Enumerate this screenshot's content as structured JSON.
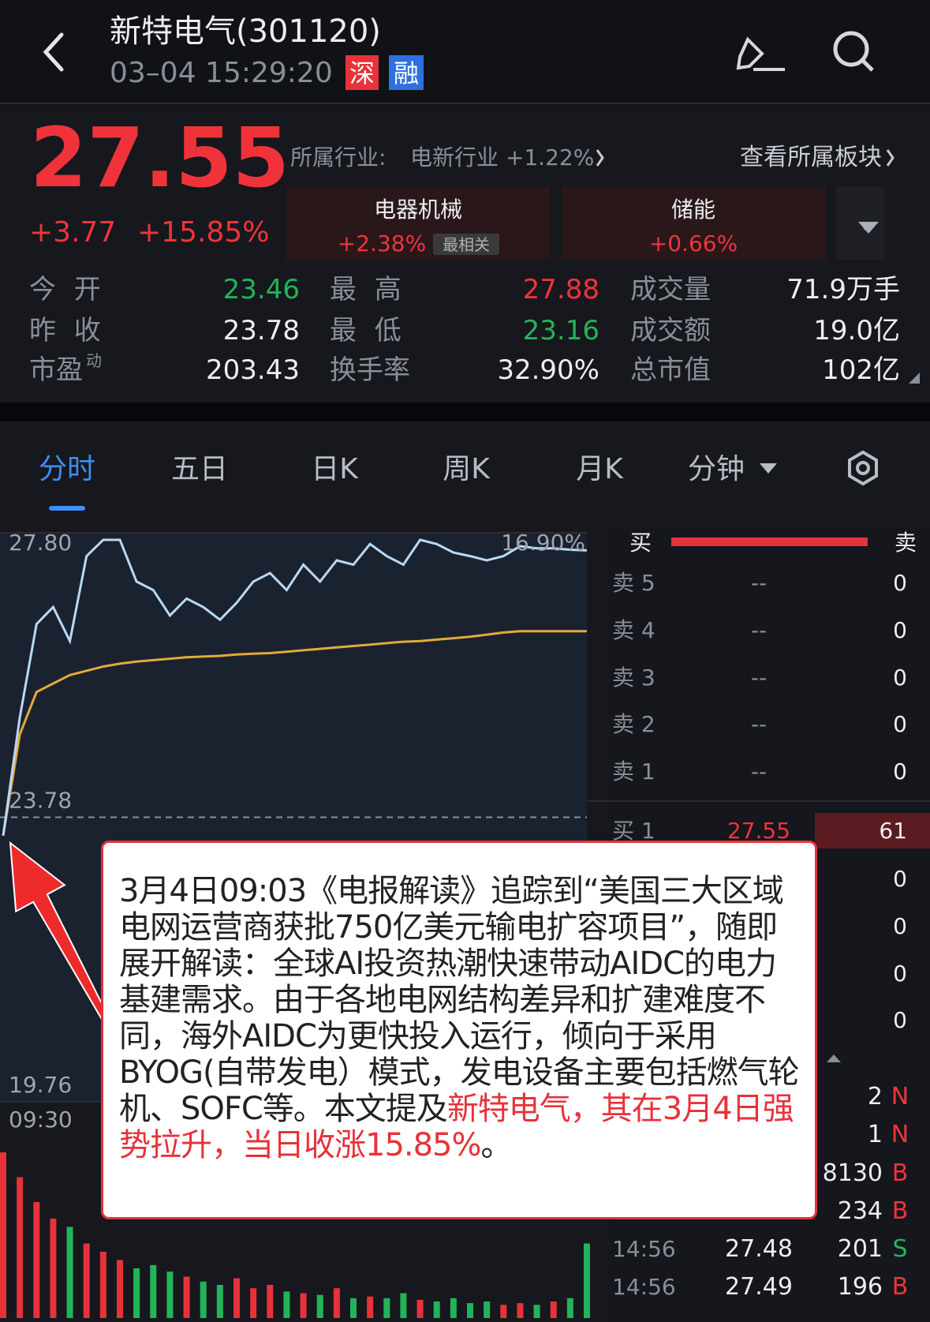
{
  "header": {
    "title": "新特电气(301120)",
    "datetime": "03–04 15:29:20",
    "badges": [
      "深",
      "融"
    ]
  },
  "quote": {
    "price": "27.55",
    "change": "+3.77",
    "change_pct": "+15.85%",
    "industry_label": "所属行业:",
    "industry": "电新行业 +1.22%",
    "sector_link": "查看所属板块",
    "sectors": [
      {
        "name": "电器机械",
        "change": "+2.38%",
        "tag": "最相关"
      },
      {
        "name": "储能",
        "change": "+0.66%"
      }
    ],
    "stats": [
      [
        {
          "label": "今 开",
          "value": "23.46",
          "color": "#22b45a"
        },
        {
          "label": "最 高",
          "value": "27.88",
          "color": "#f0333b"
        },
        {
          "label": "成交量",
          "value": "71.9万手"
        }
      ],
      [
        {
          "label": "昨 收",
          "value": "23.78"
        },
        {
          "label": "最 低",
          "value": "23.16",
          "color": "#22b45a"
        },
        {
          "label": "成交额",
          "value": "19.0亿"
        }
      ],
      [
        {
          "label": "市盈",
          "label_sup": "动",
          "value": "203.43"
        },
        {
          "label": "换手率",
          "value": "32.90%"
        },
        {
          "label": "总市值",
          "value": "102亿"
        }
      ]
    ]
  },
  "tabs": [
    "分时",
    "五日",
    "日K",
    "周K",
    "月K",
    "分钟"
  ],
  "intraday": {
    "yticks": [
      {
        "value": 27.8,
        "label": "27.80"
      },
      23.78,
      19.76
    ],
    "pct_label": "16.90%",
    "time_label": "09:30",
    "price": [
      23.52,
      25.19,
      26.51,
      26.75,
      26.27,
      27.47,
      27.7,
      27.7,
      27.11,
      26.99,
      26.63,
      26.87,
      26.75,
      26.57,
      26.81,
      27.11,
      27.23,
      26.99,
      27.35,
      27.11,
      27.41,
      27.35,
      27.64,
      27.47,
      27.35,
      27.7,
      27.64,
      27.52,
      27.47,
      27.41,
      27.47,
      27.61,
      27.58,
      27.58,
      27.56,
      27.55
    ],
    "avg": [
      23.52,
      24.95,
      25.55,
      25.67,
      25.79,
      25.85,
      25.91,
      25.95,
      25.98,
      26.0,
      26.02,
      26.04,
      26.05,
      26.06,
      26.08,
      26.09,
      26.1,
      26.12,
      26.14,
      26.16,
      26.18,
      26.2,
      26.22,
      26.24,
      26.26,
      26.27,
      26.29,
      26.31,
      26.33,
      26.36,
      26.39,
      26.41,
      26.41,
      26.41,
      26.41,
      26.41
    ],
    "volume": [
      100,
      85,
      70,
      60,
      55,
      45,
      40,
      35,
      30,
      32,
      28,
      25,
      22,
      20,
      24,
      18,
      20,
      16,
      15,
      14,
      18,
      12,
      13,
      12,
      15,
      11,
      10,
      12,
      9,
      10,
      8,
      9,
      8,
      10,
      12,
      45
    ]
  },
  "order_book": {
    "buy": "买",
    "sell": "卖",
    "asks": [
      {
        "label": "卖 5",
        "price": "--",
        "volume": "0"
      },
      {
        "label": "卖 4",
        "price": "--",
        "volume": "0"
      },
      {
        "label": "卖 3",
        "price": "--",
        "volume": "0"
      },
      {
        "label": "卖 2",
        "price": "--",
        "volume": "0"
      },
      {
        "label": "卖 1",
        "price": "--",
        "volume": "0"
      }
    ],
    "bids": [
      {
        "label": "买 1",
        "price": "27.55",
        "volume": "61"
      },
      {
        "volume": "0"
      },
      {
        "volume": "0"
      },
      {
        "volume": "0"
      },
      {
        "volume": "0"
      }
    ],
    "trades": [
      {
        "volume": "2",
        "dir": "N"
      },
      {
        "volume": "1",
        "dir": "N"
      },
      {
        "volume": "8130",
        "dir": "B"
      },
      {
        "volume": "234",
        "dir": "B"
      },
      {
        "time": "14:56",
        "price": "27.48",
        "volume": "201",
        "dir": "S"
      },
      {
        "time": "14:56",
        "price": "27.49",
        "volume": "196",
        "dir": "B"
      }
    ]
  },
  "callout": {
    "text": "3月4日09:03《电报解读》追踪到“美国三大区域电网运营商获批750亿美元输电扩容项目”，随即展开解读：全球AI投资热潮快速带动AIDC的电力基建需求。由于各地电网结构差异和扩建难度不同，海外AIDC为更快投入运行，倾向于采用BYOG(自带发电）模式，发电设备主要包括燃气轮机、SOFC等。本文提及",
    "highlight": "新特电气，其在3月4日强势拉升，当日收涨15.85%",
    "end": "。"
  }
}
